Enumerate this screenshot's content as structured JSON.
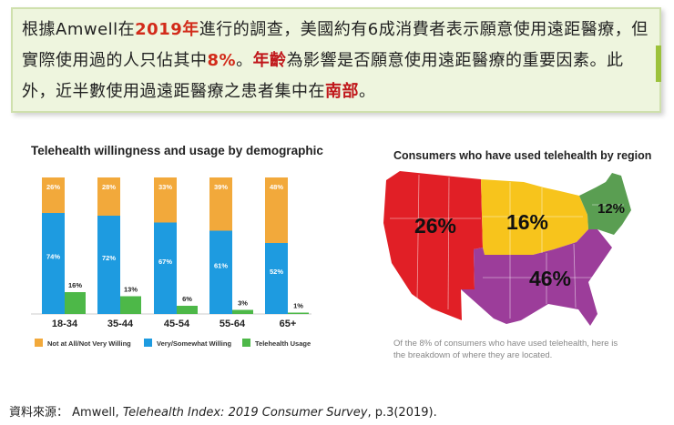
{
  "summary": {
    "parts": [
      {
        "text": "根據Amwell在",
        "style": "normal"
      },
      {
        "text": "2019年",
        "style": "red"
      },
      {
        "text": "進行的調查，美國約有6成消費者表示願意使用遠距醫療，但實際使用過的人只佔其中",
        "style": "normal"
      },
      {
        "text": "8%",
        "style": "red"
      },
      {
        "text": "。",
        "style": "normal"
      },
      {
        "text": "年齡",
        "style": "boldred"
      },
      {
        "text": "為影響是否願意使用遠距醫療的重要因素。此外，近半數使用過遠距醫療之患者集中在",
        "style": "normal"
      },
      {
        "text": "南部",
        "style": "boldred"
      },
      {
        "text": "。",
        "style": "normal"
      }
    ]
  },
  "colors": {
    "not_willing": "#f2a93b",
    "willing": "#1e9be0",
    "usage": "#4db848",
    "west": "#e11f26",
    "midwest": "#f7c41c",
    "south": "#9c3d9a",
    "northeast": "#5a9e52"
  },
  "chart_data": [
    {
      "type": "bar",
      "title": "Telehealth willingness and usage by demographic",
      "categories": [
        "18-34",
        "35-44",
        "45-54",
        "55-64",
        "65+"
      ],
      "series": [
        {
          "name": "Not at All/Not Very Willing",
          "values": [
            26,
            28,
            33,
            39,
            48
          ],
          "labels": [
            "26%",
            "28%",
            "33%",
            "39%",
            "48%"
          ]
        },
        {
          "name": "Very/Somewhat Willing",
          "values": [
            74,
            72,
            67,
            61,
            52
          ],
          "labels": [
            "74%",
            "72%",
            "67%",
            "61%",
            "52%"
          ]
        },
        {
          "name": "Telehealth Usage",
          "values": [
            16,
            13,
            6,
            3,
            1
          ],
          "labels": [
            "16%",
            "13%",
            "6%",
            "3%",
            "1%"
          ]
        }
      ],
      "stacked_series": [
        "Very/Somewhat Willing",
        "Not at All/Not Very Willing"
      ],
      "ylim": [
        0,
        100
      ]
    },
    {
      "type": "map",
      "title": "Consumers who have used telehealth by region",
      "regions": [
        {
          "name": "West",
          "value": 26,
          "label": "26%"
        },
        {
          "name": "Midwest",
          "value": 16,
          "label": "16%"
        },
        {
          "name": "South",
          "value": 46,
          "label": "46%"
        },
        {
          "name": "Northeast",
          "value": 12,
          "label": "12%"
        }
      ],
      "caption_lines": [
        "Of the 8% of consumers who have used telehealth, here is",
        "the breakdown of where they are located."
      ]
    }
  ],
  "source": {
    "prefix": "資料來源：  Amwell, ",
    "title": "Telehealth Index: 2019 Consumer Survey",
    "suffix": ", p.3(2019)."
  }
}
